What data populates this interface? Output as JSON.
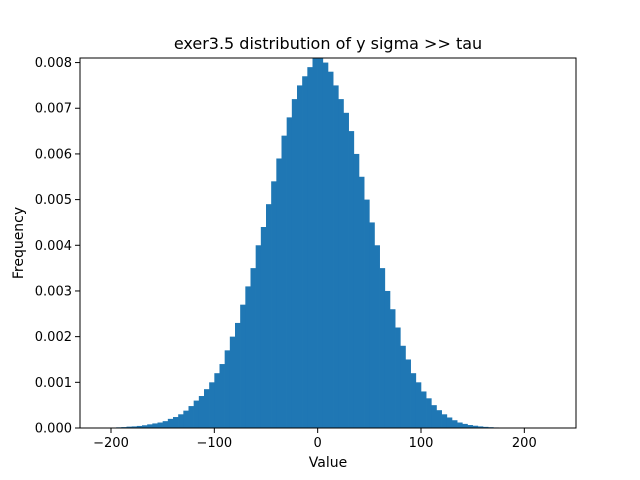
{
  "chart_data": {
    "type": "bar",
    "title": "exer3.5 distribution of y  sigma >> tau",
    "xlabel": "Value",
    "ylabel": "Frequency",
    "xlim": [
      -230,
      250
    ],
    "ylim": [
      0,
      0.0081
    ],
    "xticks": [
      -200,
      -100,
      0,
      100,
      200
    ],
    "xtick_labels": [
      "−200",
      "−100",
      "0",
      "100",
      "200"
    ],
    "yticks": [
      0.0,
      0.001,
      0.002,
      0.003,
      0.004,
      0.005,
      0.006,
      0.007,
      0.008
    ],
    "ytick_labels": [
      "0.000",
      "0.001",
      "0.002",
      "0.003",
      "0.004",
      "0.005",
      "0.006",
      "0.007",
      "0.008"
    ],
    "bar_color": "#1f77b4",
    "grid": false,
    "bin_edges": [
      -210,
      -205,
      -200,
      -195,
      -190,
      -185,
      -180,
      -175,
      -170,
      -165,
      -160,
      -155,
      -150,
      -145,
      -140,
      -135,
      -130,
      -125,
      -120,
      -115,
      -110,
      -105,
      -100,
      -95,
      -90,
      -85,
      -80,
      -75,
      -70,
      -65,
      -60,
      -55,
      -50,
      -45,
      -40,
      -35,
      -30,
      -25,
      -20,
      -15,
      -10,
      -5,
      0,
      5,
      10,
      15,
      20,
      25,
      30,
      35,
      40,
      45,
      50,
      55,
      60,
      65,
      70,
      75,
      80,
      85,
      90,
      95,
      100,
      105,
      110,
      115,
      120,
      125,
      130,
      135,
      140,
      145,
      150,
      155,
      160,
      165,
      170,
      175,
      180,
      185,
      190,
      195,
      200,
      205,
      210,
      215,
      220,
      225,
      230
    ],
    "values": [
      5e-06,
      5e-06,
      1e-05,
      1.5e-05,
      2e-05,
      3e-05,
      3.5e-05,
      4.5e-05,
      6e-05,
      8e-05,
      0.0001,
      0.00012,
      0.00015,
      0.0002,
      0.00024,
      0.0003,
      0.00038,
      0.00048,
      0.0006,
      0.0007,
      0.00085,
      0.001,
      0.0012,
      0.0014,
      0.0017,
      0.002,
      0.0023,
      0.0027,
      0.0031,
      0.0035,
      0.004,
      0.0044,
      0.0049,
      0.0054,
      0.0059,
      0.0064,
      0.0068,
      0.0072,
      0.0075,
      0.0077,
      0.0079,
      0.0081,
      0.0081,
      0.008,
      0.0078,
      0.0075,
      0.0072,
      0.0069,
      0.0065,
      0.006,
      0.0055,
      0.005,
      0.0045,
      0.004,
      0.0035,
      0.003,
      0.0026,
      0.0022,
      0.0018,
      0.0015,
      0.0012,
      0.001,
      0.0008,
      0.00065,
      0.0005,
      0.00039,
      0.0003,
      0.00023,
      0.00017,
      0.00012,
      9e-05,
      6.5e-05,
      5e-05,
      3.5e-05,
      2.5e-05,
      1.8e-05,
      1.2e-05,
      8e-06,
      6e-06,
      4e-06,
      3e-06,
      2e-06,
      2e-06,
      1e-06,
      1e-06,
      1e-06,
      1e-06,
      1e-06
    ]
  }
}
